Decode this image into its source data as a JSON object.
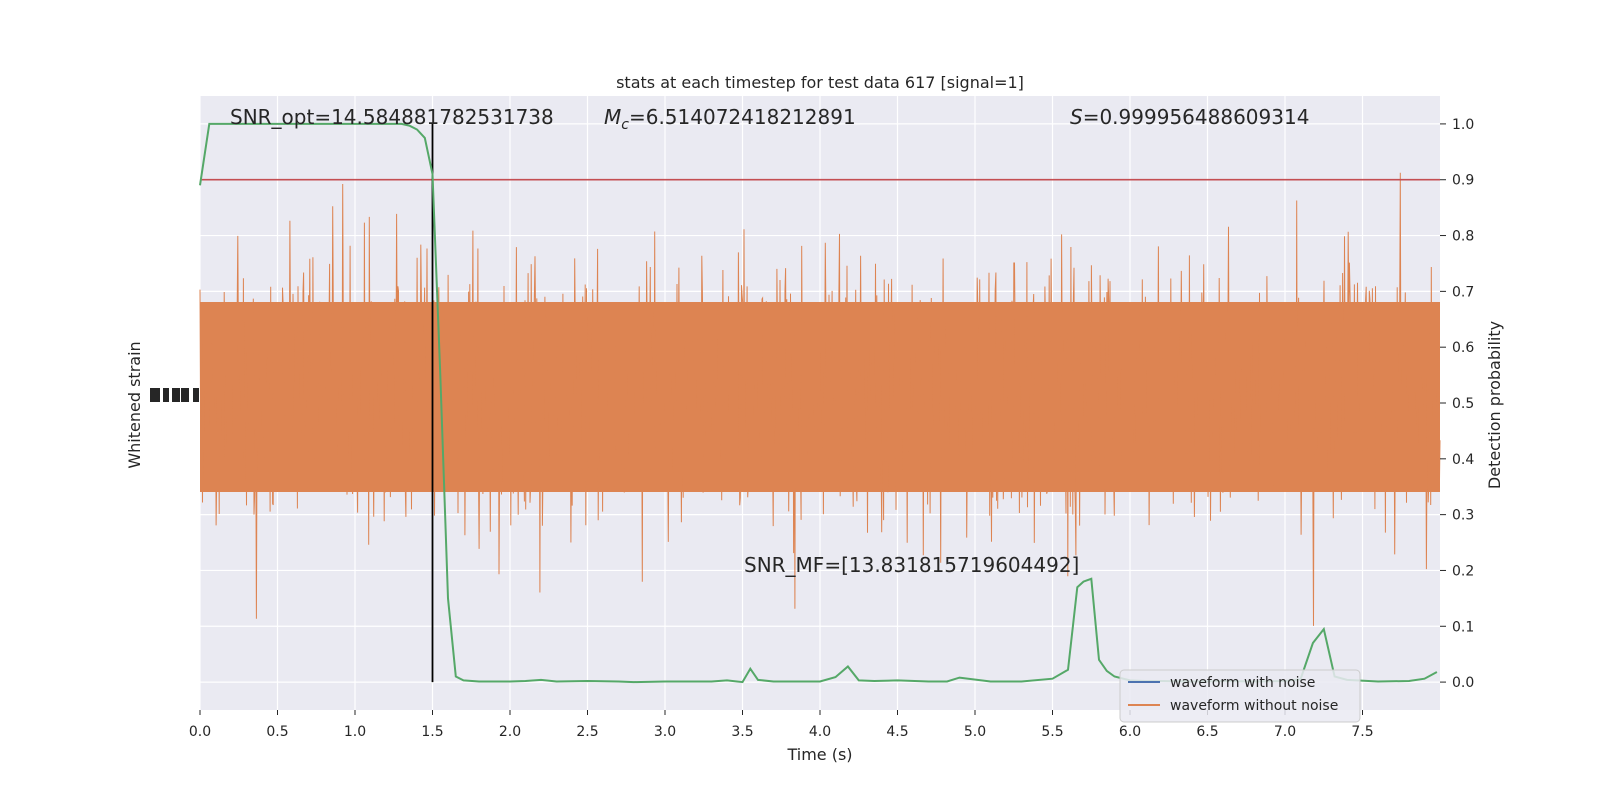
{
  "chart_data": {
    "type": "line",
    "title": "stats at each timestep for test data 617 [signal=1]",
    "xlabel": "Time (s)",
    "ylabel_left": "Whitened strain",
    "ylabel_right": "Detection probability",
    "xlim": [
      0.0,
      8.0
    ],
    "ylim_right": [
      -0.05,
      1.05
    ],
    "x_ticks": [
      "0.0",
      "0.5",
      "1.0",
      "1.5",
      "2.0",
      "2.5",
      "3.0",
      "3.5",
      "4.0",
      "4.5",
      "5.0",
      "5.5",
      "6.0",
      "6.5",
      "7.0",
      "7.5"
    ],
    "x_tick_values": [
      0.0,
      0.5,
      1.0,
      1.5,
      2.0,
      2.5,
      3.0,
      3.5,
      4.0,
      4.5,
      5.0,
      5.5,
      6.0,
      6.5,
      7.0,
      7.5
    ],
    "y_right_ticks": [
      "0.0",
      "0.1",
      "0.2",
      "0.3",
      "0.4",
      "0.5",
      "0.6",
      "0.7",
      "0.8",
      "0.9",
      "1.0"
    ],
    "y_right_tick_values": [
      0.0,
      0.1,
      0.2,
      0.3,
      0.4,
      0.5,
      0.6,
      0.7,
      0.8,
      0.9,
      1.0
    ],
    "grid": true,
    "legend_position": "lower-right",
    "annotations": {
      "snr_opt": "SNR_opt=14.584881782531738",
      "mc_symbol": "M",
      "mc_sub": "c",
      "mc_value": "=6.514072418212891",
      "s_symbol": "S",
      "s_value": "=0.999956488609314",
      "snr_mf": "SNR_MF=[13.831815719604492]"
    },
    "threshold": {
      "value": 0.9,
      "color": "#c44e52"
    },
    "merger_time": 1.5,
    "series": [
      {
        "name": "waveform with noise",
        "color": "#4c72b0"
      },
      {
        "name": "waveform without noise",
        "color": "#dd8452"
      },
      {
        "color": "#55a868",
        "x": [
          0.0,
          0.06,
          0.2,
          0.4,
          0.6,
          0.8,
          1.0,
          1.2,
          1.3,
          1.35,
          1.4,
          1.45,
          1.5,
          1.55,
          1.6,
          1.65,
          1.7,
          1.8,
          2.0,
          2.1,
          2.2,
          2.3,
          2.5,
          2.7,
          2.8,
          3.0,
          3.2,
          3.3,
          3.4,
          3.5,
          3.55,
          3.6,
          3.7,
          3.8,
          4.0,
          4.1,
          4.18,
          4.25,
          4.35,
          4.5,
          4.7,
          4.82,
          4.9,
          5.1,
          5.3,
          5.5,
          5.6,
          5.66,
          5.7,
          5.75,
          5.8,
          5.85,
          5.9,
          6.0,
          6.1,
          6.2,
          6.4,
          6.6,
          6.8,
          7.0,
          7.1,
          7.18,
          7.25,
          7.32,
          7.4,
          7.6,
          7.8,
          7.9,
          7.98
        ],
        "y": [
          0.89,
          1.0,
          1.0,
          1.0,
          1.0,
          1.0,
          1.0,
          1.0,
          1.0,
          0.997,
          0.99,
          0.975,
          0.91,
          0.55,
          0.15,
          0.01,
          0.003,
          0.001,
          0.001,
          0.002,
          0.004,
          0.001,
          0.002,
          0.001,
          0.0,
          0.001,
          0.001,
          0.001,
          0.003,
          0.0,
          0.024,
          0.004,
          0.001,
          0.001,
          0.001,
          0.009,
          0.028,
          0.003,
          0.002,
          0.003,
          0.001,
          0.001,
          0.008,
          0.001,
          0.001,
          0.006,
          0.022,
          0.17,
          0.18,
          0.185,
          0.04,
          0.02,
          0.01,
          0.003,
          0.002,
          0.002,
          0.001,
          0.002,
          0.001,
          0.002,
          0.005,
          0.07,
          0.095,
          0.01,
          0.004,
          0.001,
          0.002,
          0.006,
          0.018
        ]
      }
    ]
  }
}
